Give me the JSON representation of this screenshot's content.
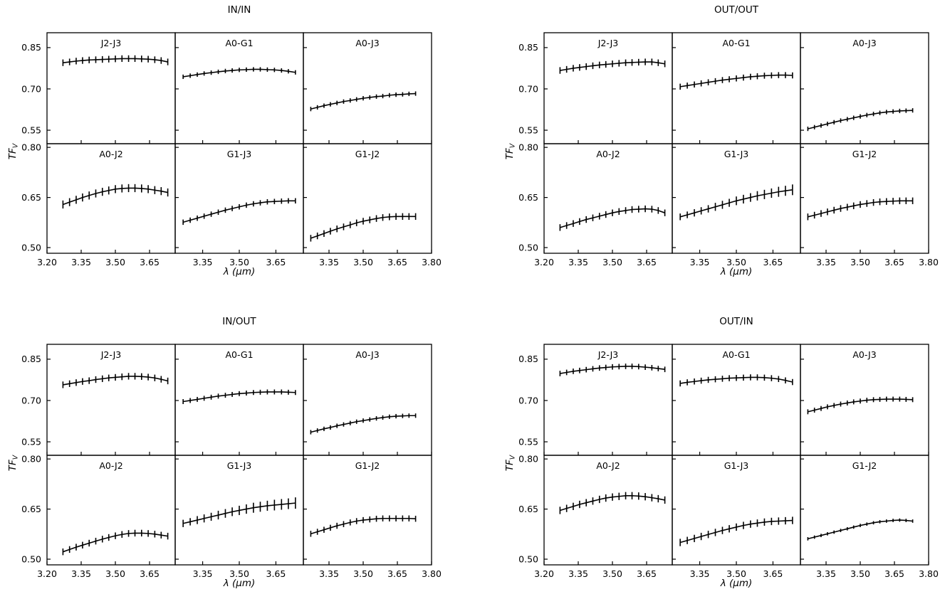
{
  "figure": {
    "background": "#ffffff",
    "line_color": "#000000",
    "text_color": "#000000"
  },
  "chart_data": {
    "type": "line",
    "description": "Four groups of 2x3 error-bar line subplots of visibility transfer function vs wavelength",
    "xlabel": "λ (μm)",
    "ylabel_main": "TF",
    "ylabel_sub": "V",
    "x": [
      3.27,
      3.299,
      3.328,
      3.356,
      3.385,
      3.414,
      3.443,
      3.471,
      3.5,
      3.529,
      3.558,
      3.586,
      3.615,
      3.644,
      3.673,
      3.701,
      3.73
    ],
    "x_axis": {
      "columns": [
        {
          "xlim": [
            3.2,
            3.7625
          ],
          "tick_values": [
            3.2,
            3.35,
            3.5,
            3.65
          ],
          "tick_labels": [
            "3.20",
            "3.35",
            "3.50",
            "3.65"
          ]
        },
        {
          "xlim": [
            3.2375,
            3.7625
          ],
          "tick_values": [
            3.35,
            3.5,
            3.65
          ],
          "tick_labels": [
            "3.35",
            "3.50",
            "3.65"
          ]
        },
        {
          "xlim": [
            3.2375,
            3.8
          ],
          "tick_values": [
            3.35,
            3.5,
            3.65,
            3.8
          ],
          "tick_labels": [
            "3.35",
            "3.50",
            "3.65",
            "3.80"
          ]
        }
      ]
    },
    "y_axis": {
      "rows": [
        {
          "ylim": [
            0.501,
            0.904
          ],
          "tick_values": [
            0.85,
            0.7,
            0.55
          ],
          "tick_labels": [
            "0.85",
            "0.70",
            "0.55"
          ]
        },
        {
          "ylim": [
            0.483,
            0.811
          ],
          "tick_values": [
            0.8,
            0.65,
            0.5
          ],
          "tick_labels": [
            "0.80",
            "0.65",
            "0.50"
          ]
        }
      ]
    },
    "groups": [
      {
        "title": "IN/IN",
        "position": "top-left",
        "panels": [
          {
            "label": "J2-J3",
            "row": 0,
            "col": 0,
            "err": 0.012,
            "y": [
              0.795,
              0.798,
              0.801,
              0.803,
              0.805,
              0.806,
              0.807,
              0.808,
              0.809,
              0.81,
              0.81,
              0.81,
              0.809,
              0.808,
              0.806,
              0.803,
              0.798
            ]
          },
          {
            "label": "A0-G1",
            "row": 0,
            "col": 1,
            "err": 0.008,
            "y": [
              0.744,
              0.748,
              0.752,
              0.756,
              0.759,
              0.762,
              0.765,
              0.767,
              0.769,
              0.77,
              0.771,
              0.771,
              0.77,
              0.769,
              0.767,
              0.764,
              0.76
            ]
          },
          {
            "label": "A0-J3",
            "row": 0,
            "col": 2,
            "err": 0.008,
            "y": [
              0.627,
              0.633,
              0.639,
              0.644,
              0.649,
              0.654,
              0.658,
              0.662,
              0.666,
              0.669,
              0.672,
              0.674,
              0.677,
              0.679,
              0.68,
              0.682,
              0.683
            ]
          },
          {
            "label": "A0-J2",
            "row": 1,
            "col": 0,
            "err": 0.012,
            "y": [
              0.629,
              0.636,
              0.643,
              0.65,
              0.656,
              0.662,
              0.667,
              0.671,
              0.675,
              0.677,
              0.678,
              0.678,
              0.677,
              0.675,
              0.672,
              0.669,
              0.665
            ]
          },
          {
            "label": "G1-J3",
            "row": 1,
            "col": 1,
            "err": 0.008,
            "y": [
              0.576,
              0.582,
              0.588,
              0.594,
              0.6,
              0.606,
              0.612,
              0.617,
              0.622,
              0.627,
              0.631,
              0.634,
              0.637,
              0.638,
              0.639,
              0.64,
              0.64
            ]
          },
          {
            "label": "G1-J2",
            "row": 1,
            "col": 2,
            "err": 0.01,
            "y": [
              0.528,
              0.535,
              0.542,
              0.549,
              0.556,
              0.562,
              0.568,
              0.574,
              0.579,
              0.583,
              0.587,
              0.59,
              0.592,
              0.593,
              0.593,
              0.593,
              0.593
            ]
          }
        ]
      },
      {
        "title": "OUT/OUT",
        "position": "top-right",
        "panels": [
          {
            "label": "J2-J3",
            "row": 0,
            "col": 0,
            "err": 0.012,
            "y": [
              0.767,
              0.771,
              0.775,
              0.778,
              0.781,
              0.784,
              0.787,
              0.789,
              0.791,
              0.793,
              0.795,
              0.796,
              0.797,
              0.798,
              0.798,
              0.795,
              0.791
            ]
          },
          {
            "label": "A0-G1",
            "row": 0,
            "col": 1,
            "err": 0.011,
            "y": [
              0.708,
              0.712,
              0.716,
              0.72,
              0.724,
              0.728,
              0.732,
              0.735,
              0.738,
              0.741,
              0.744,
              0.746,
              0.748,
              0.749,
              0.75,
              0.75,
              0.749
            ]
          },
          {
            "label": "A0-J3",
            "row": 0,
            "col": 2,
            "err": 0.008,
            "y": [
              0.555,
              0.561,
              0.567,
              0.573,
              0.579,
              0.585,
              0.59,
              0.595,
              0.6,
              0.605,
              0.609,
              0.613,
              0.616,
              0.618,
              0.62,
              0.621,
              0.622
            ]
          },
          {
            "label": "A0-J2",
            "row": 1,
            "col": 0,
            "err": 0.01,
            "y": [
              0.56,
              0.566,
              0.572,
              0.578,
              0.584,
              0.589,
              0.594,
              0.599,
              0.604,
              0.608,
              0.611,
              0.614,
              0.615,
              0.616,
              0.615,
              0.611,
              0.604
            ]
          },
          {
            "label": "G1-J3",
            "row": 1,
            "col": 1,
            "err": [
              0.01,
              0.01,
              0.011,
              0.011,
              0.011,
              0.012,
              0.012,
              0.012,
              0.013,
              0.013,
              0.013,
              0.014,
              0.014,
              0.014,
              0.015,
              0.015,
              0.016
            ],
            "y": [
              0.592,
              0.598,
              0.604,
              0.61,
              0.616,
              0.622,
              0.628,
              0.634,
              0.64,
              0.645,
              0.65,
              0.655,
              0.659,
              0.663,
              0.667,
              0.67,
              0.673
            ]
          },
          {
            "label": "G1-J2",
            "row": 1,
            "col": 2,
            "err": 0.01,
            "y": [
              0.592,
              0.597,
              0.602,
              0.607,
              0.612,
              0.617,
              0.621,
              0.625,
              0.629,
              0.632,
              0.635,
              0.637,
              0.638,
              0.639,
              0.64,
              0.64,
              0.64
            ]
          }
        ]
      },
      {
        "title": "IN/OUT",
        "position": "bottom-left",
        "panels": [
          {
            "label": "J2-J3",
            "row": 0,
            "col": 0,
            "err": 0.012,
            "y": [
              0.757,
              0.761,
              0.765,
              0.769,
              0.772,
              0.776,
              0.779,
              0.782,
              0.784,
              0.786,
              0.788,
              0.788,
              0.787,
              0.785,
              0.782,
              0.777,
              0.771
            ]
          },
          {
            "label": "A0-G1",
            "row": 0,
            "col": 1,
            "err": 0.009,
            "y": [
              0.696,
              0.7,
              0.704,
              0.708,
              0.712,
              0.716,
              0.719,
              0.722,
              0.725,
              0.727,
              0.729,
              0.73,
              0.731,
              0.731,
              0.731,
              0.73,
              0.729
            ]
          },
          {
            "label": "A0-J3",
            "row": 0,
            "col": 2,
            "err": 0.008,
            "y": [
              0.585,
              0.591,
              0.597,
              0.602,
              0.608,
              0.613,
              0.618,
              0.623,
              0.627,
              0.631,
              0.635,
              0.638,
              0.641,
              0.643,
              0.644,
              0.645,
              0.645
            ]
          },
          {
            "label": "A0-J2",
            "row": 1,
            "col": 0,
            "err": 0.01,
            "y": [
              0.522,
              0.529,
              0.536,
              0.542,
              0.548,
              0.554,
              0.56,
              0.565,
              0.57,
              0.574,
              0.577,
              0.578,
              0.578,
              0.577,
              0.575,
              0.572,
              0.569
            ]
          },
          {
            "label": "G1-J3",
            "row": 1,
            "col": 1,
            "err": [
              0.011,
              0.011,
              0.012,
              0.012,
              0.012,
              0.013,
              0.013,
              0.013,
              0.014,
              0.014,
              0.015,
              0.015,
              0.015,
              0.016,
              0.016,
              0.016,
              0.017
            ],
            "y": [
              0.607,
              0.612,
              0.617,
              0.622,
              0.627,
              0.632,
              0.637,
              0.642,
              0.646,
              0.65,
              0.654,
              0.657,
              0.66,
              0.662,
              0.664,
              0.666,
              0.668
            ]
          },
          {
            "label": "G1-J2",
            "row": 1,
            "col": 2,
            "err": 0.009,
            "y": [
              0.576,
              0.582,
              0.588,
              0.594,
              0.6,
              0.605,
              0.61,
              0.614,
              0.617,
              0.619,
              0.621,
              0.622,
              0.622,
              0.622,
              0.622,
              0.622,
              0.621
            ]
          }
        ]
      },
      {
        "title": "OUT/IN",
        "position": "bottom-right",
        "panels": [
          {
            "label": "J2-J3",
            "row": 0,
            "col": 0,
            "err": 0.01,
            "y": [
              0.798,
              0.802,
              0.806,
              0.809,
              0.812,
              0.815,
              0.818,
              0.82,
              0.822,
              0.823,
              0.824,
              0.824,
              0.823,
              0.821,
              0.819,
              0.816,
              0.813
            ]
          },
          {
            "label": "A0-G1",
            "row": 0,
            "col": 1,
            "err": 0.011,
            "y": [
              0.762,
              0.766,
              0.769,
              0.772,
              0.775,
              0.777,
              0.779,
              0.781,
              0.782,
              0.783,
              0.784,
              0.784,
              0.783,
              0.781,
              0.778,
              0.773,
              0.767
            ]
          },
          {
            "label": "A0-J3",
            "row": 0,
            "col": 2,
            "err": 0.009,
            "y": [
              0.659,
              0.665,
              0.671,
              0.677,
              0.682,
              0.687,
              0.691,
              0.695,
              0.698,
              0.701,
              0.703,
              0.704,
              0.705,
              0.705,
              0.705,
              0.704,
              0.703
            ]
          },
          {
            "label": "A0-J2",
            "row": 1,
            "col": 0,
            "err": 0.011,
            "y": [
              0.646,
              0.652,
              0.658,
              0.664,
              0.669,
              0.674,
              0.679,
              0.683,
              0.686,
              0.688,
              0.69,
              0.69,
              0.689,
              0.687,
              0.684,
              0.681,
              0.677
            ]
          },
          {
            "label": "G1-J3",
            "row": 1,
            "col": 1,
            "err": 0.011,
            "y": [
              0.55,
              0.556,
              0.562,
              0.568,
              0.574,
              0.58,
              0.586,
              0.591,
              0.596,
              0.601,
              0.605,
              0.608,
              0.611,
              0.613,
              0.614,
              0.615,
              0.616
            ]
          },
          {
            "label": "G1-J2",
            "row": 1,
            "col": 2,
            "err": 0.005,
            "y": [
              0.561,
              0.566,
              0.571,
              0.576,
              0.581,
              0.586,
              0.591,
              0.596,
              0.601,
              0.605,
              0.609,
              0.612,
              0.614,
              0.616,
              0.617,
              0.616,
              0.614
            ]
          }
        ]
      }
    ]
  }
}
